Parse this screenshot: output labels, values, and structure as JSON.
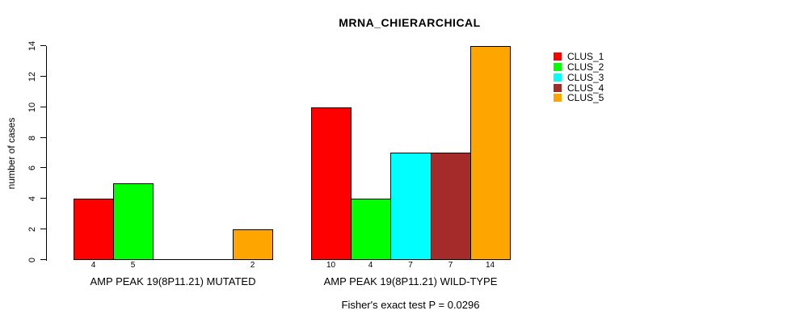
{
  "chart_data": {
    "type": "bar",
    "title": "MRNA_CHIERARCHICAL",
    "ylabel": "number of cases",
    "footnote": "Fisher's exact test P = 0.0296",
    "ylim": [
      0,
      14
    ],
    "yticks": [
      0,
      2,
      4,
      6,
      8,
      10,
      12,
      14
    ],
    "grid": false,
    "legend_position": "right",
    "background": "#FFFFFF",
    "bar_border_color": "#000000",
    "categories": [
      "AMP PEAK 19(8P11.21) MUTATED",
      "AMP PEAK 19(8P11.21) WILD-TYPE"
    ],
    "series": [
      {
        "name": "CLUS_1",
        "color": "#FF0000",
        "values": [
          4,
          10
        ]
      },
      {
        "name": "CLUS_2",
        "color": "#00FF00",
        "values": [
          5,
          4
        ]
      },
      {
        "name": "CLUS_3",
        "color": "#00FFFF",
        "values": [
          0,
          7
        ]
      },
      {
        "name": "CLUS_4",
        "color": "#A52A2A",
        "values": [
          0,
          7
        ]
      },
      {
        "name": "CLUS_5",
        "color": "#FFA500",
        "values": [
          2,
          14
        ]
      }
    ],
    "value_labels_under_bars": true,
    "zero_height_bars_drawn_as_baseline_segment": true
  }
}
